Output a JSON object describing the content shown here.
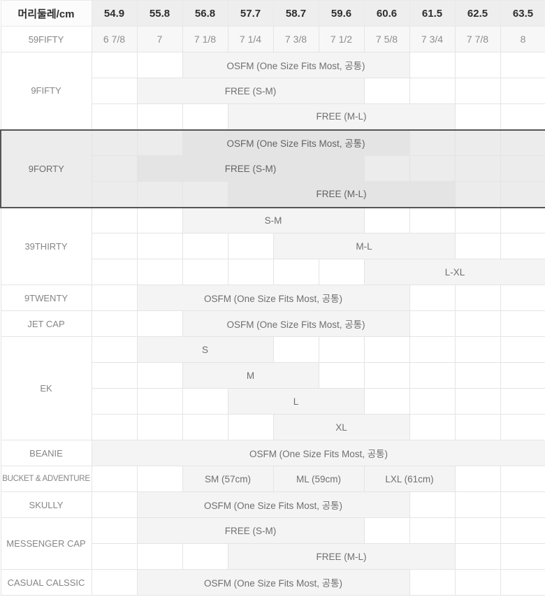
{
  "table": {
    "header": {
      "label": "머리둘레/cm",
      "columns": [
        "54.9",
        "55.8",
        "56.8",
        "57.7",
        "58.7",
        "59.6",
        "60.6",
        "61.5",
        "62.5",
        "63.5"
      ]
    },
    "rows": {
      "fifty_nine_fifty": {
        "label": "59FIFTY",
        "values": [
          "6 7/8",
          "7",
          "7 1/8",
          "7 1/4",
          "7 3/8",
          "7 1/2",
          "7 5/8",
          "7 3/4",
          "7 7/8",
          "8"
        ]
      },
      "nine_fifty": {
        "label": "9FIFTY",
        "sizes": [
          "OSFM (One Size Fits Most, 공통)",
          "FREE (S-M)",
          "FREE (M-L)"
        ]
      },
      "nine_forty": {
        "label": "9FORTY",
        "highlighted": true,
        "sizes": [
          "OSFM (One Size Fits Most, 공통)",
          "FREE (S-M)",
          "FREE (M-L)"
        ]
      },
      "thirty_nine_thirty": {
        "label": "39THIRTY",
        "sizes": [
          "S-M",
          "M-L",
          "L-XL"
        ]
      },
      "nine_twenty": {
        "label": "9TWENTY",
        "sizes": [
          "OSFM (One Size Fits Most, 공통)"
        ]
      },
      "jet_cap": {
        "label": "JET CAP",
        "sizes": [
          "OSFM (One Size Fits Most, 공통)"
        ]
      },
      "ek": {
        "label": "EK",
        "sizes": [
          "S",
          "M",
          "L",
          "XL"
        ]
      },
      "beanie": {
        "label": "BEANIE",
        "sizes": [
          "OSFM (One Size Fits Most, 공통)"
        ]
      },
      "bucket_adventure": {
        "label": "BUCKET & ADVENTURE",
        "sizes": [
          "SM (57cm)",
          "ML (59cm)",
          "LXL (61cm)"
        ]
      },
      "skully": {
        "label": "SKULLY",
        "sizes": [
          "OSFM (One Size Fits Most, 공통)"
        ]
      },
      "messenger_cap": {
        "label": "MESSENGER CAP",
        "sizes": [
          "FREE (S-M)",
          "FREE (M-L)"
        ]
      },
      "casual_classic": {
        "label": "CASUAL CALSSIC",
        "sizes": [
          "OSFM (One Size Fits Most, 공통)"
        ]
      }
    }
  },
  "colors": {
    "header_bg": "#eeeeee",
    "row_shade_bg": "#f7f7f7",
    "size_cell_bg": "#f4f4f4",
    "highlight_section_bg": "#ececec",
    "highlight_size_cell_bg": "#e4e4e4",
    "highlight_border": "#555555",
    "grid_line": "#e4e4e4"
  }
}
